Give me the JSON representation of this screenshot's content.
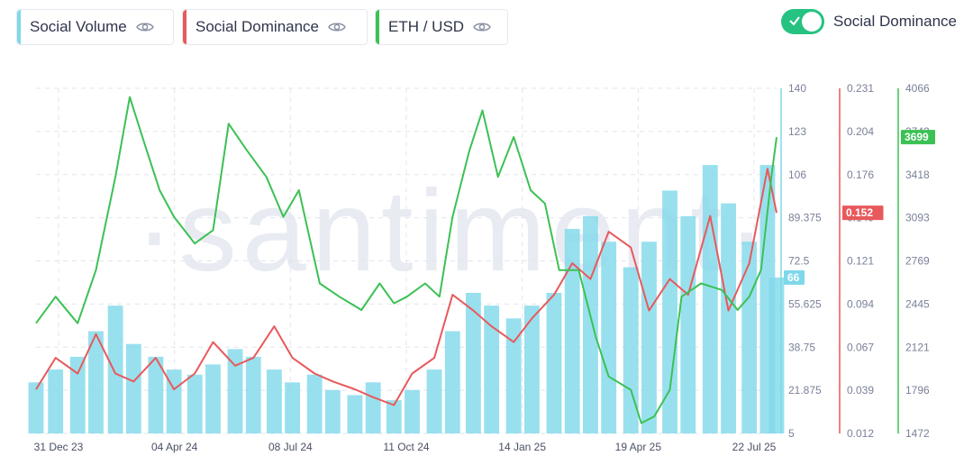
{
  "legend": {
    "items": [
      {
        "label": "Social Volume",
        "color": "#7fd8ea"
      },
      {
        "label": "Social Dominance",
        "color": "#e8595c"
      },
      {
        "label": "ETH / USD",
        "color": "#3cc154"
      }
    ],
    "eye_icon": "eye-icon"
  },
  "toggle": {
    "label": "Social Dominance",
    "on": true,
    "color": "#26c281"
  },
  "watermark": "·santiment·",
  "chart_data": {
    "type": "line",
    "x_labels": [
      "31 Dec 23",
      "04 Apr 24",
      "08 Jul 24",
      "11 Oct 24",
      "14 Jan 25",
      "19 Apr 25",
      "22 Jul 25"
    ],
    "x_range": [
      "2023-12-31",
      "2025-07-22"
    ],
    "axes": [
      {
        "id": "volume",
        "ticks": [
          "140",
          "123",
          "106",
          "89.375",
          "72.5",
          "55.625",
          "38.75",
          "21.875",
          "5"
        ],
        "range": [
          5,
          140
        ],
        "color": "#7fd8ea",
        "current": "66"
      },
      {
        "id": "dominance",
        "ticks": [
          "0.231",
          "0.204",
          "0.176",
          "0.149",
          "0.121",
          "0.094",
          "0.067",
          "0.039",
          "0.012"
        ],
        "range": [
          0.012,
          0.231
        ],
        "color": "#e8595c",
        "current": "0.152"
      },
      {
        "id": "price",
        "ticks": [
          "4066",
          "3742",
          "3418",
          "3093",
          "2769",
          "2445",
          "2121",
          "1796",
          "1472"
        ],
        "range": [
          1472,
          4066
        ],
        "color": "#3cc154",
        "current": "3699"
      }
    ],
    "series": [
      {
        "name": "Social Volume",
        "type": "bar",
        "axis": "volume",
        "color": "#7fd8ea",
        "x": [
          "2023-12-31",
          "2024-01-15",
          "2024-02-01",
          "2024-02-15",
          "2024-03-01",
          "2024-03-15",
          "2024-04-01",
          "2024-04-15",
          "2024-05-01",
          "2024-05-15",
          "2024-06-01",
          "2024-06-15",
          "2024-07-01",
          "2024-07-15",
          "2024-08-01",
          "2024-08-15",
          "2024-09-01",
          "2024-09-15",
          "2024-10-01",
          "2024-10-15",
          "2024-11-01",
          "2024-11-15",
          "2024-12-01",
          "2024-12-15",
          "2025-01-01",
          "2025-01-15",
          "2025-02-01",
          "2025-02-15",
          "2025-03-01",
          "2025-03-15",
          "2025-04-01",
          "2025-04-15",
          "2025-05-01",
          "2025-05-15",
          "2025-06-01",
          "2025-06-15",
          "2025-07-01",
          "2025-07-15",
          "2025-07-22"
        ],
        "y": [
          25,
          30,
          35,
          45,
          55,
          40,
          35,
          30,
          28,
          32,
          38,
          35,
          30,
          25,
          28,
          22,
          20,
          25,
          18,
          22,
          30,
          45,
          60,
          55,
          50,
          55,
          60,
          85,
          90,
          80,
          70,
          80,
          100,
          90,
          110,
          95,
          80,
          110,
          66
        ]
      },
      {
        "name": "Social Dominance",
        "type": "line",
        "axis": "dominance",
        "color": "#e8595c",
        "x": [
          "2023-12-31",
          "2024-01-15",
          "2024-02-01",
          "2024-02-15",
          "2024-03-01",
          "2024-03-15",
          "2024-04-01",
          "2024-04-15",
          "2024-05-01",
          "2024-05-15",
          "2024-06-01",
          "2024-06-15",
          "2024-07-01",
          "2024-07-15",
          "2024-08-01",
          "2024-08-15",
          "2024-09-01",
          "2024-09-15",
          "2024-10-01",
          "2024-10-15",
          "2024-11-01",
          "2024-11-15",
          "2024-12-01",
          "2024-12-15",
          "2025-01-01",
          "2025-01-15",
          "2025-02-01",
          "2025-02-15",
          "2025-03-01",
          "2025-03-15",
          "2025-04-01",
          "2025-04-15",
          "2025-05-01",
          "2025-05-15",
          "2025-06-01",
          "2025-06-15",
          "2025-07-01",
          "2025-07-15",
          "2025-07-22"
        ],
        "y": [
          0.04,
          0.06,
          0.05,
          0.075,
          0.05,
          0.045,
          0.06,
          0.04,
          0.05,
          0.07,
          0.055,
          0.06,
          0.08,
          0.06,
          0.05,
          0.045,
          0.04,
          0.035,
          0.03,
          0.05,
          0.06,
          0.1,
          0.09,
          0.08,
          0.07,
          0.085,
          0.1,
          0.12,
          0.11,
          0.14,
          0.13,
          0.09,
          0.11,
          0.1,
          0.15,
          0.09,
          0.12,
          0.18,
          0.152
        ]
      },
      {
        "name": "ETH / USD",
        "type": "line",
        "axis": "price",
        "color": "#3cc154",
        "x": [
          "2023-12-31",
          "2024-01-15",
          "2024-02-01",
          "2024-02-15",
          "2024-03-01",
          "2024-03-12",
          "2024-03-25",
          "2024-04-04",
          "2024-04-15",
          "2024-05-01",
          "2024-05-15",
          "2024-05-27",
          "2024-06-10",
          "2024-06-25",
          "2024-07-08",
          "2024-07-20",
          "2024-08-05",
          "2024-08-20",
          "2024-09-06",
          "2024-09-20",
          "2024-10-01",
          "2024-10-11",
          "2024-10-25",
          "2024-11-05",
          "2024-11-15",
          "2024-11-28",
          "2024-12-08",
          "2024-12-20",
          "2025-01-01",
          "2025-01-14",
          "2025-01-25",
          "2025-02-05",
          "2025-02-20",
          "2025-03-05",
          "2025-03-15",
          "2025-04-01",
          "2025-04-09",
          "2025-04-19",
          "2025-05-01",
          "2025-05-10",
          "2025-05-25",
          "2025-06-10",
          "2025-06-22",
          "2025-07-01",
          "2025-07-10",
          "2025-07-18",
          "2025-07-22"
        ],
        "y": [
          2300,
          2500,
          2300,
          2700,
          3400,
          4000,
          3600,
          3300,
          3100,
          2900,
          3000,
          3800,
          3600,
          3400,
          3100,
          3300,
          2600,
          2500,
          2400,
          2600,
          2450,
          2500,
          2600,
          2500,
          3100,
          3600,
          3900,
          3400,
          3700,
          3300,
          3200,
          2700,
          2700,
          2200,
          1900,
          1800,
          1550,
          1600,
          1800,
          2500,
          2600,
          2550,
          2400,
          2500,
          2700,
          3400,
          3699
        ]
      }
    ]
  }
}
